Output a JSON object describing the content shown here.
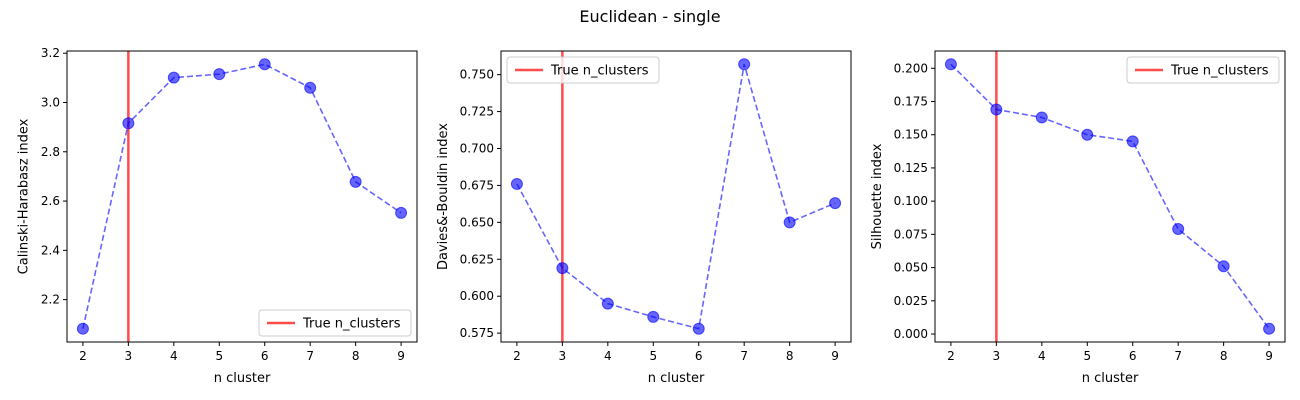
{
  "figure": {
    "suptitle": "Euclidean - single"
  },
  "colors": {
    "series": "#0000ff",
    "true_line": "#ff0000"
  },
  "chart_data": [
    {
      "type": "line",
      "xlabel": "n cluster",
      "ylabel": "Calinski-Harabasz index",
      "x": [
        2,
        3,
        4,
        5,
        6,
        7,
        8,
        9
      ],
      "series": [
        {
          "values": [
            2.082,
            2.916,
            3.101,
            3.115,
            3.155,
            3.06,
            2.678,
            2.552
          ]
        }
      ],
      "vline": {
        "x": 3,
        "label": "True n_clusters"
      },
      "legend": "lower right",
      "xlim": [
        1.65,
        9.35
      ],
      "ylim": [
        2.028,
        3.209
      ],
      "xticks": [
        "2",
        "3",
        "4",
        "5",
        "6",
        "7",
        "8",
        "9"
      ],
      "yticks": [
        2.2,
        2.4,
        2.6,
        2.8,
        3.0,
        3.2
      ],
      "ytick_labels": [
        "2.2",
        "2.4",
        "2.6",
        "2.8",
        "3.0",
        "3.2"
      ],
      "grid": false
    },
    {
      "type": "line",
      "xlabel": "n cluster",
      "ylabel": "Davies&-Bouldin index",
      "x": [
        2,
        3,
        4,
        5,
        6,
        7,
        8,
        9
      ],
      "series": [
        {
          "values": [
            0.676,
            0.619,
            0.595,
            0.586,
            0.578,
            0.757,
            0.65,
            0.663
          ]
        }
      ],
      "vline": {
        "x": 3,
        "label": "True n_clusters"
      },
      "legend": "upper left",
      "xlim": [
        1.65,
        9.35
      ],
      "ylim": [
        0.569,
        0.766
      ],
      "xticks": [
        "2",
        "3",
        "4",
        "5",
        "6",
        "7",
        "8",
        "9"
      ],
      "yticks": [
        0.575,
        0.6,
        0.625,
        0.65,
        0.675,
        0.7,
        0.725,
        0.75
      ],
      "ytick_labels": [
        "0.575",
        "0.600",
        "0.625",
        "0.650",
        "0.675",
        "0.700",
        "0.725",
        "0.750"
      ],
      "grid": false
    },
    {
      "type": "line",
      "xlabel": "n cluster",
      "ylabel": "Silhouette index",
      "x": [
        2,
        3,
        4,
        5,
        6,
        7,
        8,
        9
      ],
      "series": [
        {
          "values": [
            0.203,
            0.169,
            0.163,
            0.15,
            0.145,
            0.079,
            0.051,
            0.004
          ]
        }
      ],
      "vline": {
        "x": 3,
        "label": "True n_clusters"
      },
      "legend": "upper right",
      "xlim": [
        1.65,
        9.35
      ],
      "ylim": [
        -0.006,
        0.213
      ],
      "xticks": [
        "2",
        "3",
        "4",
        "5",
        "6",
        "7",
        "8",
        "9"
      ],
      "yticks": [
        0.0,
        0.025,
        0.05,
        0.075,
        0.1,
        0.125,
        0.15,
        0.175,
        0.2
      ],
      "ytick_labels": [
        "0.000",
        "0.025",
        "0.050",
        "0.075",
        "0.100",
        "0.125",
        "0.150",
        "0.175",
        "0.200"
      ],
      "grid": false
    }
  ]
}
